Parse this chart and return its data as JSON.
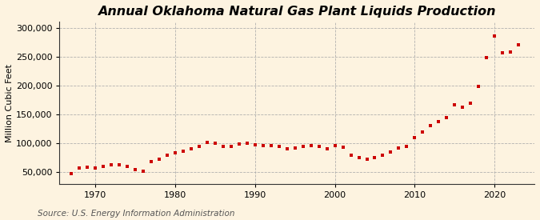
{
  "title": "Annual Oklahoma Natural Gas Plant Liquids Production",
  "ylabel": "Million Cubic Feet",
  "source": "Source: U.S. Energy Information Administration",
  "background_color": "#fdf3e0",
  "line_color": "#cc0000",
  "marker_color": "#cc0000",
  "grid_color": "#aaaaaa",
  "years": [
    1967,
    1968,
    1969,
    1970,
    1971,
    1972,
    1973,
    1974,
    1975,
    1976,
    1977,
    1978,
    1979,
    1980,
    1981,
    1982,
    1983,
    1984,
    1985,
    1986,
    1987,
    1988,
    1989,
    1990,
    1991,
    1992,
    1993,
    1994,
    1995,
    1996,
    1997,
    1998,
    1999,
    2000,
    2001,
    2002,
    2003,
    2004,
    2005,
    2006,
    2007,
    2008,
    2009,
    2010,
    2011,
    2012,
    2013,
    2014,
    2015,
    2016,
    2017,
    2018,
    2019,
    2020,
    2021,
    2022,
    2023
  ],
  "values": [
    47000,
    57000,
    59000,
    58000,
    60000,
    63000,
    63000,
    60000,
    55000,
    52000,
    68000,
    72000,
    80000,
    83000,
    87000,
    90000,
    94000,
    101000,
    100000,
    95000,
    95000,
    99000,
    100000,
    97000,
    96000,
    96000,
    94000,
    91000,
    92000,
    94000,
    96000,
    94000,
    91000,
    96000,
    93000,
    79000,
    75000,
    72000,
    75000,
    80000,
    85000,
    92000,
    95000,
    110000,
    120000,
    130000,
    138000,
    145000,
    167000,
    162000,
    170000,
    198000,
    248000,
    285000,
    256000,
    258000,
    270000
  ],
  "xlim": [
    1965.5,
    2025
  ],
  "ylim": [
    30000,
    310000
  ],
  "yticks": [
    50000,
    100000,
    150000,
    200000,
    250000,
    300000
  ],
  "xticks": [
    1970,
    1980,
    1990,
    2000,
    2010,
    2020
  ],
  "title_fontsize": 11.5,
  "label_fontsize": 8,
  "tick_fontsize": 8,
  "source_fontsize": 7.5
}
